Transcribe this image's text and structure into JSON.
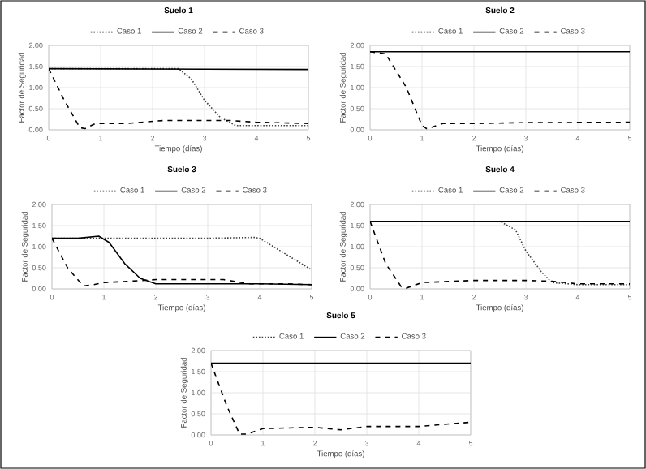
{
  "chart_data": [
    {
      "type": "line",
      "title": "Suelo 1",
      "xlabel": "Tiempo (días)",
      "ylabel": "Factor de Seguridad",
      "xlim": [
        0,
        5
      ],
      "xticks": [
        0,
        1,
        2,
        3,
        4,
        5
      ],
      "ylim": [
        0,
        2
      ],
      "yticks": [
        {
          "value": 0,
          "label": "0.00"
        },
        {
          "value": 0.5,
          "label": "0.50"
        },
        {
          "value": 1,
          "label": "1.00"
        },
        {
          "value": 1.5,
          "label": "1.50"
        },
        {
          "value": 2,
          "label": "2.00"
        }
      ],
      "grid": true,
      "legend": "top",
      "series": [
        {
          "name": "Caso 1",
          "color": "#404040",
          "line_style": "dotted",
          "x": [
            0,
            1,
            2,
            2.5,
            2.75,
            3,
            3.3,
            3.6,
            4,
            5
          ],
          "values": [
            1.45,
            1.45,
            1.45,
            1.45,
            1.2,
            0.7,
            0.3,
            0.1,
            0.1,
            0.1
          ]
        },
        {
          "name": "Caso 2",
          "color": "#000000",
          "line_style": "solid",
          "x": [
            0,
            5
          ],
          "values": [
            1.45,
            1.43
          ]
        },
        {
          "name": "Caso 3",
          "color": "#000000",
          "line_style": "dashed",
          "x": [
            0,
            0.3,
            0.6,
            0.7,
            0.9,
            1.5,
            2.2,
            3,
            3.5,
            4,
            5
          ],
          "values": [
            1.45,
            0.7,
            0.05,
            0.03,
            0.15,
            0.15,
            0.22,
            0.22,
            0.22,
            0.18,
            0.15
          ]
        }
      ]
    },
    {
      "type": "line",
      "title": "Suelo 2",
      "xlabel": "Tiempo (días)",
      "ylabel": "Factor de Seguridad",
      "xlim": [
        0,
        5
      ],
      "xticks": [
        0,
        1,
        2,
        3,
        4,
        5
      ],
      "ylim": [
        0,
        2
      ],
      "yticks": [
        {
          "value": 0,
          "label": "0.00"
        },
        {
          "value": 0.5,
          "label": "0.50"
        },
        {
          "value": 1,
          "label": "1.00"
        },
        {
          "value": 1.5,
          "label": "1.50"
        },
        {
          "value": 2,
          "label": "2.00"
        }
      ],
      "grid": true,
      "legend": "top",
      "series": [
        {
          "name": "Caso 1",
          "color": "#404040",
          "line_style": "dotted",
          "values": [
            null,
            null
          ]
        },
        {
          "name": "Caso 2",
          "color": "#000000",
          "line_style": "solid",
          "x": [
            0,
            5
          ],
          "values": [
            1.85,
            1.85
          ]
        },
        {
          "name": "Caso 3",
          "color": "#000000",
          "line_style": "dashed",
          "x": [
            0,
            0.3,
            0.7,
            1.0,
            1.1,
            1.4,
            2,
            3,
            5
          ],
          "values": [
            1.85,
            1.8,
            1.0,
            0.1,
            0.02,
            0.15,
            0.15,
            0.17,
            0.18
          ]
        }
      ]
    },
    {
      "type": "line",
      "title": "Suelo 3",
      "xlabel": "Tiempo (días)",
      "ylabel": "Factor de Seguridad",
      "xlim": [
        0,
        5
      ],
      "xticks": [
        0,
        1,
        2,
        3,
        4,
        5
      ],
      "ylim": [
        0,
        2
      ],
      "yticks": [
        {
          "value": 0,
          "label": "0.00"
        },
        {
          "value": 0.5,
          "label": "0.50"
        },
        {
          "value": 1,
          "label": "1.00"
        },
        {
          "value": 1.5,
          "label": "1.50"
        },
        {
          "value": 2,
          "label": "2.00"
        }
      ],
      "grid": true,
      "legend": "top",
      "series": [
        {
          "name": "Caso 1",
          "color": "#404040",
          "line_style": "dotted",
          "x": [
            0,
            1,
            2,
            3,
            3.9,
            4,
            5
          ],
          "values": [
            1.2,
            1.2,
            1.2,
            1.2,
            1.22,
            1.2,
            0.45
          ]
        },
        {
          "name": "Caso 2",
          "color": "#000000",
          "line_style": "solid",
          "x": [
            0,
            0.5,
            0.9,
            1.1,
            1.4,
            1.7,
            2,
            3,
            4,
            5
          ],
          "values": [
            1.2,
            1.2,
            1.25,
            1.1,
            0.6,
            0.25,
            0.12,
            0.12,
            0.12,
            0.1
          ]
        },
        {
          "name": "Caso 3",
          "color": "#000000",
          "line_style": "dashed",
          "x": [
            0,
            0.3,
            0.6,
            0.8,
            1,
            1.5,
            2,
            3,
            3.3,
            3.8,
            4.5,
            5
          ],
          "values": [
            1.2,
            0.5,
            0.07,
            0.1,
            0.15,
            0.18,
            0.22,
            0.22,
            0.22,
            0.12,
            0.12,
            0.1
          ]
        }
      ]
    },
    {
      "type": "line",
      "title": "Suelo 4",
      "xlabel": "Tiempo (días)",
      "ylabel": "Factor de Seguridad",
      "xlim": [
        0,
        5
      ],
      "xticks": [
        0,
        1,
        2,
        3,
        4,
        5
      ],
      "ylim": [
        0,
        2
      ],
      "yticks": [
        {
          "value": 0,
          "label": "0.00"
        },
        {
          "value": 0.5,
          "label": "0.50"
        },
        {
          "value": 1,
          "label": "1.00"
        },
        {
          "value": 1.5,
          "label": "1.50"
        },
        {
          "value": 2,
          "label": "2.00"
        }
      ],
      "grid": true,
      "legend": "top",
      "series": [
        {
          "name": "Caso 1",
          "color": "#404040",
          "line_style": "dotted",
          "x": [
            0,
            1,
            2,
            2.5,
            2.8,
            3,
            3.3,
            3.5,
            4,
            5
          ],
          "values": [
            1.6,
            1.6,
            1.6,
            1.6,
            1.4,
            0.9,
            0.4,
            0.15,
            0.1,
            0.1
          ]
        },
        {
          "name": "Caso 2",
          "color": "#000000",
          "line_style": "solid",
          "x": [
            0,
            5
          ],
          "values": [
            1.6,
            1.6
          ]
        },
        {
          "name": "Caso 3",
          "color": "#000000",
          "line_style": "dashed",
          "x": [
            0,
            0.3,
            0.6,
            0.7,
            1,
            2,
            3,
            3.5,
            4,
            5
          ],
          "values": [
            1.6,
            0.6,
            0.05,
            0.02,
            0.15,
            0.2,
            0.2,
            0.18,
            0.12,
            0.12
          ]
        }
      ]
    },
    {
      "type": "line",
      "title": "Suelo 5",
      "xlabel": "Tiempo (días)",
      "ylabel": "Factor de Seguridad",
      "xlim": [
        0,
        5
      ],
      "xticks": [
        0,
        1,
        2,
        3,
        4,
        5
      ],
      "ylim": [
        0,
        2
      ],
      "yticks": [
        {
          "value": 0,
          "label": "0.00"
        },
        {
          "value": 0.5,
          "label": "0.50"
        },
        {
          "value": 1,
          "label": "1.00"
        },
        {
          "value": 1.5,
          "label": "1.50"
        },
        {
          "value": 2,
          "label": "2.00"
        }
      ],
      "grid": true,
      "legend": "top",
      "series": [
        {
          "name": "Caso 1",
          "color": "#404040",
          "line_style": "dotted",
          "values": [
            null,
            null
          ]
        },
        {
          "name": "Caso 2",
          "color": "#000000",
          "line_style": "solid",
          "x": [
            0,
            5
          ],
          "values": [
            1.7,
            1.7
          ]
        },
        {
          "name": "Caso 3",
          "color": "#000000",
          "line_style": "dashed",
          "x": [
            0,
            0.3,
            0.55,
            0.7,
            1,
            2,
            2.5,
            3,
            4,
            5
          ],
          "values": [
            1.7,
            0.7,
            0.02,
            0.02,
            0.15,
            0.18,
            0.12,
            0.2,
            0.2,
            0.3
          ]
        }
      ]
    }
  ]
}
